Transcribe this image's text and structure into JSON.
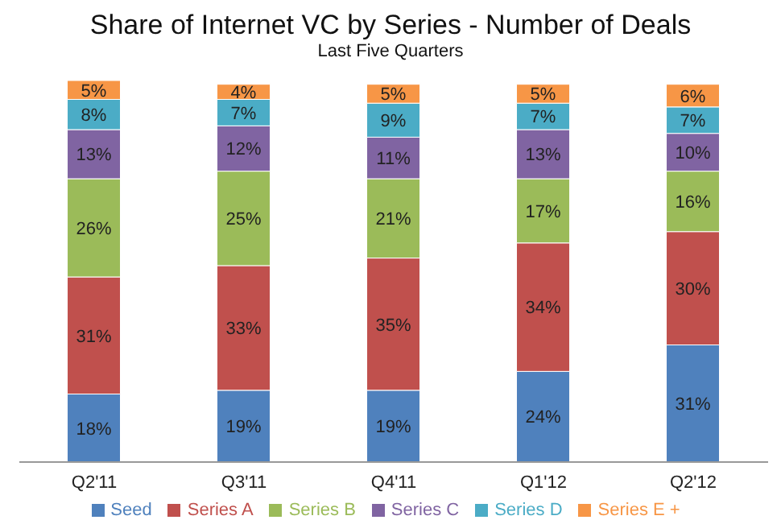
{
  "chart_data": {
    "type": "bar",
    "title": "Share of Internet VC by Series - Number of Deals",
    "subtitle": "Last Five Quarters",
    "categories": [
      "Q2'11",
      "Q3'11",
      "Q4'11",
      "Q1'12",
      "Q2'12"
    ],
    "stacked": true,
    "legend": "bottom",
    "series": [
      {
        "name": "Seed",
        "color": "#4f81bd",
        "values": [
          18,
          19,
          19,
          24,
          31
        ],
        "value_labels": [
          "18%",
          "19%",
          "19%",
          "24%",
          "31%"
        ]
      },
      {
        "name": "Series A",
        "color": "#c0504d",
        "values": [
          31,
          33,
          35,
          34,
          30
        ],
        "value_labels": [
          "31%",
          "33%",
          "35%",
          "34%",
          "30%"
        ]
      },
      {
        "name": "Series B",
        "color": "#9bbb59",
        "values": [
          26,
          25,
          21,
          17,
          16
        ],
        "value_labels": [
          "26%",
          "25%",
          "21%",
          "17%",
          "16%"
        ]
      },
      {
        "name": "Series C",
        "color": "#8064a2",
        "values": [
          13,
          12,
          11,
          13,
          10
        ],
        "value_labels": [
          "13%",
          "12%",
          "11%",
          "13%",
          "10%"
        ]
      },
      {
        "name": "Series D",
        "color": "#4bacc6",
        "values": [
          8,
          7,
          9,
          7,
          7
        ],
        "value_labels": [
          "8%",
          "7%",
          "9%",
          "7%",
          "7%"
        ]
      },
      {
        "name": "Series E +",
        "color": "#f79646",
        "values": [
          5,
          4,
          5,
          5,
          6
        ],
        "value_labels": [
          "5%",
          "4%",
          "5%",
          "5%",
          "6%"
        ]
      }
    ]
  }
}
